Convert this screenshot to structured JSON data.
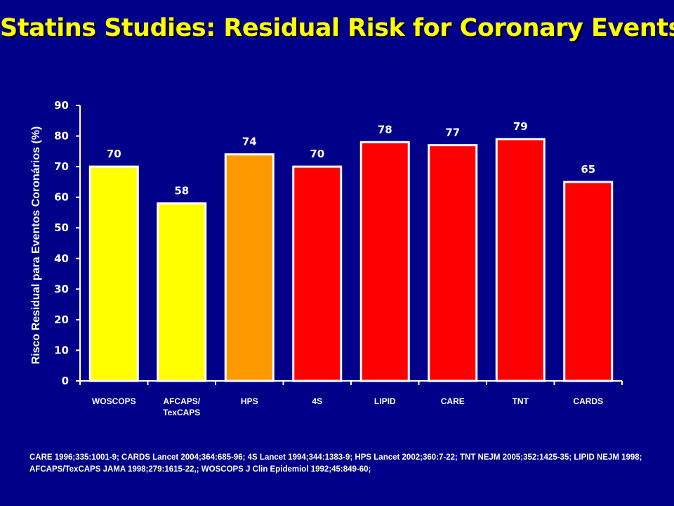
{
  "slide": {
    "title": "Statins Studies: Residual Risk for Coronary Events",
    "references": "CARE 1996;335:1001-9; CARDS Lancet 2004;364:685-96; 4S Lancet 1994;344:1383-9; HPS Lancet 2002;360:7-22; TNT NEJM 2005;352:1425-35; LIPID NEJM 1998; AFCAPS/TexCAPS JAMA 1998;279:1615-22,; WOSCOPS J Clin Epidemiol 1992;45:849-60;"
  },
  "chart_data": {
    "type": "bar",
    "title": "Statins Studies: Residual Risk for Coronary Events",
    "ylabel": "Risco Residual para Eventos Coronários (%)",
    "xlabel": "",
    "ylim": [
      0,
      90
    ],
    "yticks": [
      0,
      10,
      20,
      30,
      40,
      50,
      60,
      70,
      80,
      90
    ],
    "grid": false,
    "categories": [
      "WOSCOPS",
      "AFCAPS/\nTexCAPS",
      "HPS",
      "4S",
      "LIPID",
      "CARE",
      "TNT",
      "CARDS"
    ],
    "values": [
      70,
      58,
      74,
      70,
      78,
      77,
      79,
      65
    ],
    "data_labels": [
      "70",
      "58",
      "74",
      "70",
      "78",
      "77",
      "79",
      "65"
    ],
    "bar_colors": [
      "#ffff00",
      "#ffff00",
      "#ff9900",
      "#ff0000",
      "#ff0000",
      "#ff0000",
      "#ff0000",
      "#ff0000"
    ]
  },
  "colors": {
    "background": "#000088",
    "title": "#ffff00",
    "text": "#ffffff",
    "bar_outline": "#ffffff"
  }
}
